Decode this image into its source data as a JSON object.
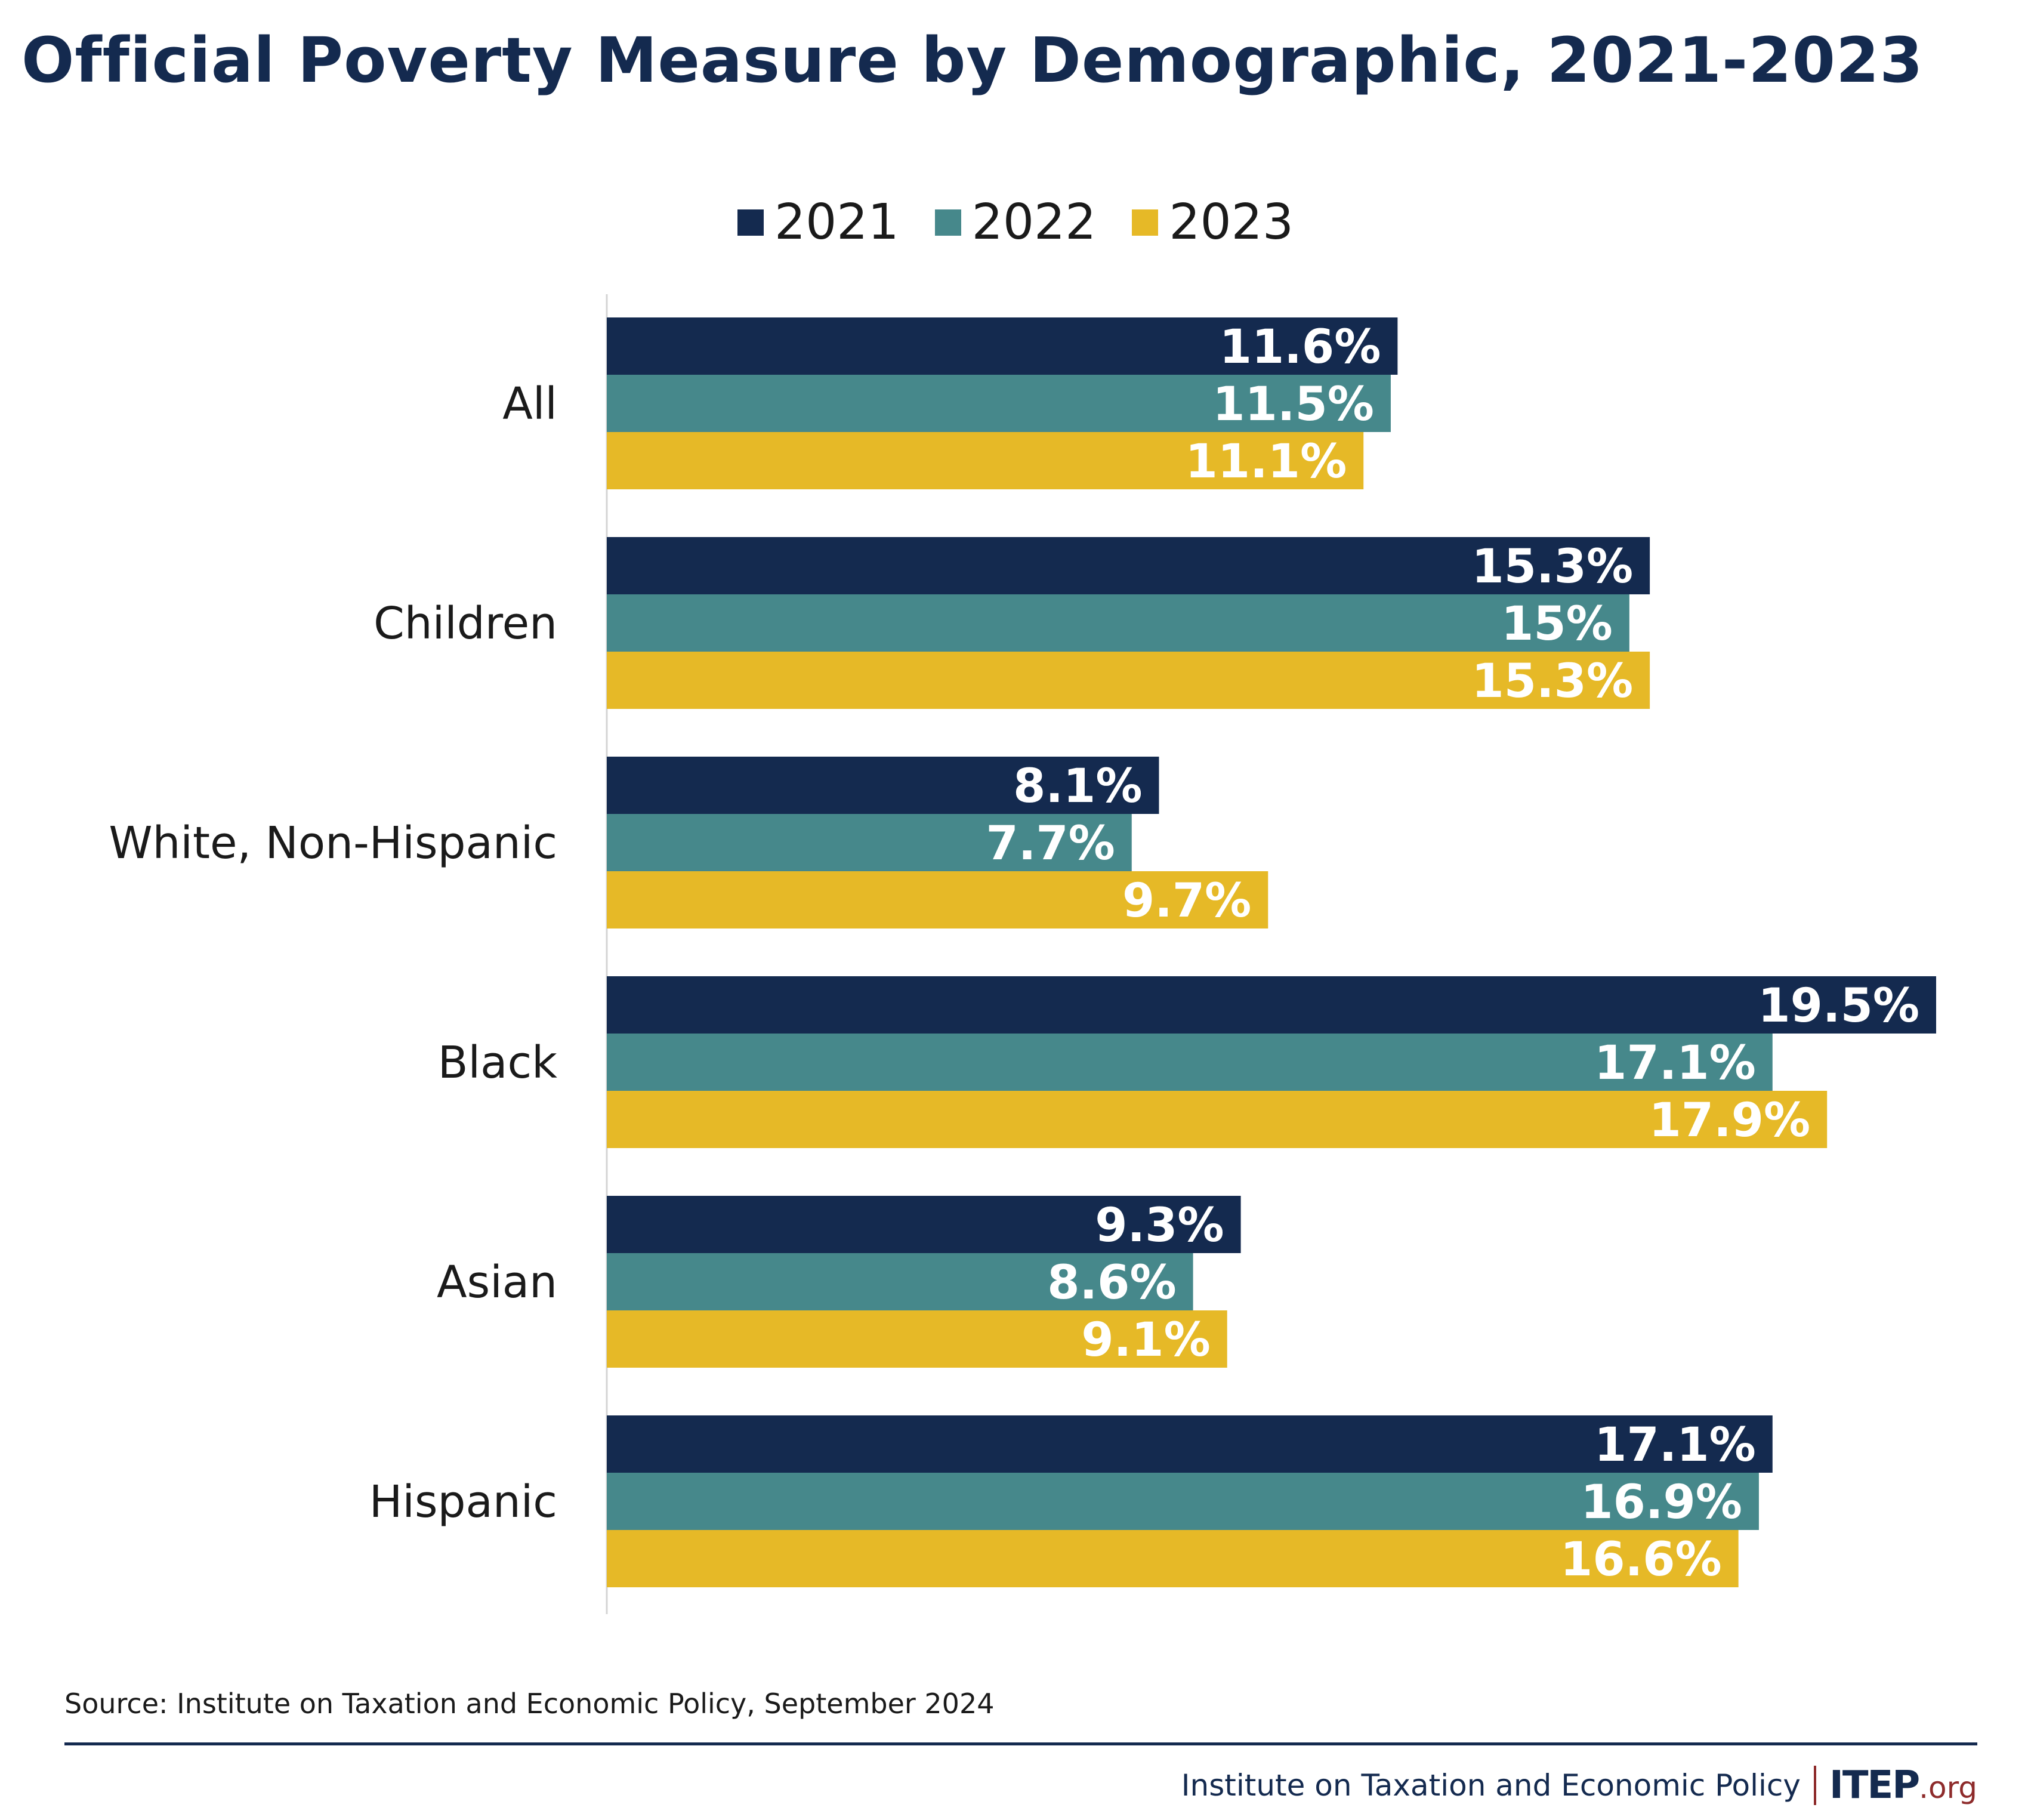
{
  "title": "Official Poverty Measure by Demographic, 2021-2023",
  "source": "Source: Institute on Taxation and Economic Policy, September 2024",
  "footer": {
    "org": "Institute on Taxation and Economic Policy",
    "logo_main": "ITEP",
    "logo_suffix": ".org"
  },
  "colors": {
    "2021": "#142a4f",
    "2022": "#46888b",
    "2023": "#e6b927",
    "title": "#142a4f",
    "logo_accent": "#8e2b2b"
  },
  "chart_data": {
    "type": "bar",
    "orientation": "horizontal",
    "title": "Official Poverty Measure by Demographic, 2021-2023",
    "categories": [
      "All",
      "Children",
      "White, Non-Hispanic",
      "Black",
      "Asian",
      "Hispanic"
    ],
    "series": [
      {
        "name": "2021",
        "values": [
          11.6,
          15.3,
          8.1,
          19.5,
          9.3,
          17.1
        ],
        "labels": [
          "11.6%",
          "15.3%",
          "8.1%",
          "19.5%",
          "9.3%",
          "17.1%"
        ]
      },
      {
        "name": "2022",
        "values": [
          11.5,
          15,
          7.7,
          17.1,
          8.6,
          16.9
        ],
        "labels": [
          "11.5%",
          "15%",
          "7.7%",
          "17.1%",
          "8.6%",
          "16.9%"
        ]
      },
      {
        "name": "2023",
        "values": [
          11.1,
          15.3,
          9.7,
          17.9,
          9.1,
          16.6
        ],
        "labels": [
          "11.1%",
          "15.3%",
          "9.7%",
          "17.9%",
          "9.1%",
          "16.6%"
        ]
      }
    ],
    "xlim": [
      0,
      19.5
    ],
    "grid": false,
    "legend": "top-center",
    "unit": "%"
  }
}
